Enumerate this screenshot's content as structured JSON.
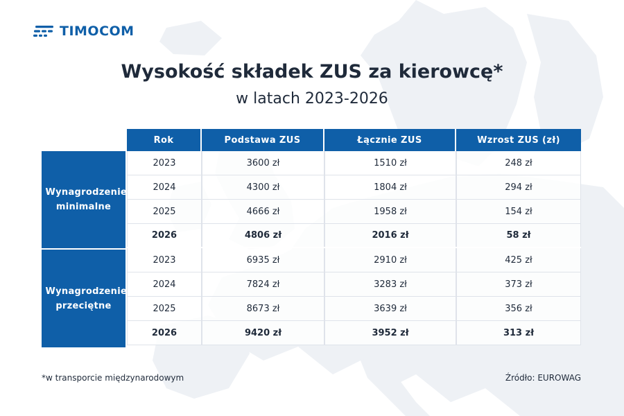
{
  "brand": {
    "logo_text": "TIMOCOM",
    "color": "#0f5fa8"
  },
  "heading": {
    "title": "Wysokość składek ZUS za kierowcę*",
    "subtitle": "w latach 2023-2026"
  },
  "table": {
    "columns": [
      "Rok",
      "Podstawa ZUS",
      "Łącznie ZUS",
      "Wzrost ZUS (zł)"
    ],
    "groups": [
      {
        "label": "Wynagrodzenie minimalne",
        "rows": [
          {
            "year": "2023",
            "base": "3600 zł",
            "total": "1510 zł",
            "growth": "248 zł",
            "bold": false
          },
          {
            "year": "2024",
            "base": "4300 zł",
            "total": "1804 zł",
            "growth": "294 zł",
            "bold": false
          },
          {
            "year": "2025",
            "base": "4666 zł",
            "total": "1958 zł",
            "growth": "154 zł",
            "bold": false
          },
          {
            "year": "2026",
            "base": "4806 zł",
            "total": "2016 zł",
            "growth": "58 zł",
            "bold": true
          }
        ]
      },
      {
        "label": "Wynagrodzenie przeciętne",
        "rows": [
          {
            "year": "2023",
            "base": "6935 zł",
            "total": "2910 zł",
            "growth": "425 zł",
            "bold": false
          },
          {
            "year": "2024",
            "base": "7824 zł",
            "total": "3283 zł",
            "growth": "373 zł",
            "bold": false
          },
          {
            "year": "2025",
            "base": "8673 zł",
            "total": "3639 zł",
            "growth": "356 zł",
            "bold": false
          },
          {
            "year": "2026",
            "base": "9420 zł",
            "total": "3952 zł",
            "growth": "313 zł",
            "bold": true
          }
        ]
      }
    ]
  },
  "footer": {
    "footnote": "*w transporcie międzynarodowym",
    "source": "Źródło: EUROWAG"
  }
}
